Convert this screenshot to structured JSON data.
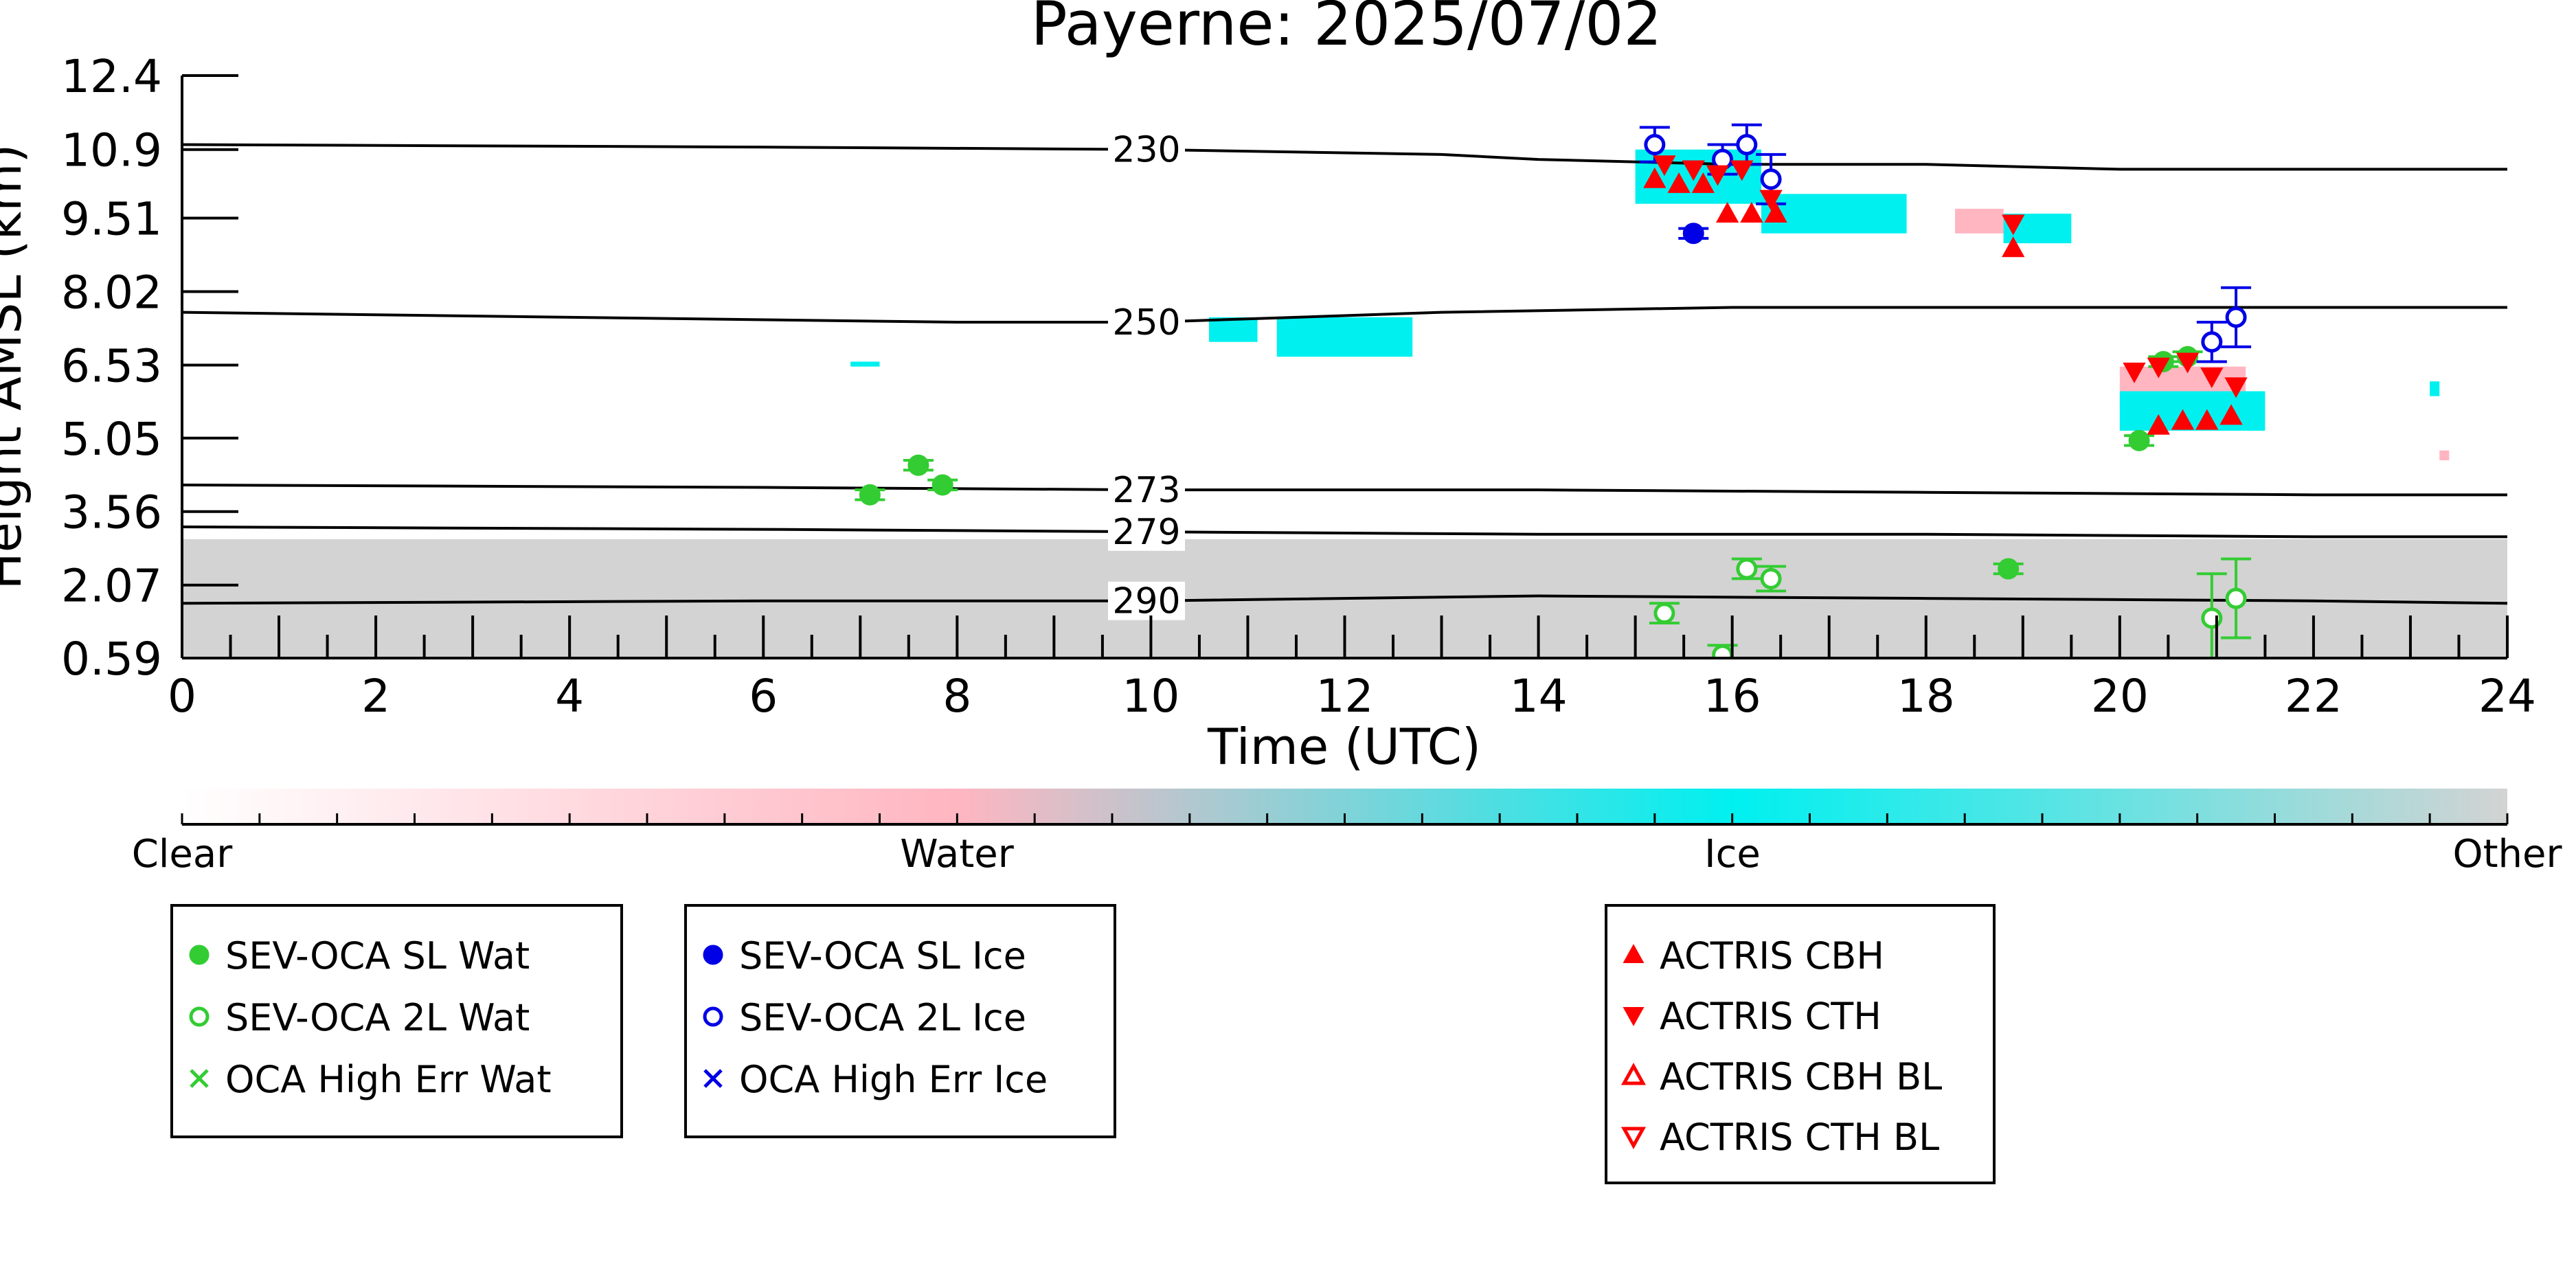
{
  "chart_data": {
    "type": "scatter",
    "title": "Payerne: 2025/07/02",
    "xlabel": "Time (UTC)",
    "ylabel": "Height AMSL (km)",
    "xlim": [
      0,
      24
    ],
    "ylim": [
      0.59,
      12.4
    ],
    "x_ticks": [
      0,
      2,
      4,
      6,
      8,
      10,
      12,
      14,
      16,
      18,
      20,
      22,
      24
    ],
    "y_ticks": [
      "12.4",
      "10.9",
      "9.51",
      "8.02",
      "6.53",
      "5.05",
      "3.56",
      "2.07",
      "0.59"
    ],
    "grid": false,
    "colors": {
      "water": "#33cc33",
      "ice": "#0000e6",
      "actris": "#ff0000",
      "cloud_ice": "#00f0f0",
      "cloud_water": "#ffb6c1",
      "cloud_other": "#d3d3d3"
    },
    "isotherms": [
      {
        "label": "230",
        "label_x": 9.6,
        "points": [
          [
            0,
            11.0
          ],
          [
            6,
            10.95
          ],
          [
            10,
            10.9
          ],
          [
            13,
            10.8
          ],
          [
            14,
            10.7
          ],
          [
            16,
            10.6
          ],
          [
            18,
            10.6
          ],
          [
            20,
            10.5
          ],
          [
            24,
            10.5
          ]
        ]
      },
      {
        "label": "250",
        "label_x": 9.6,
        "points": [
          [
            0,
            7.6
          ],
          [
            4,
            7.5
          ],
          [
            8,
            7.4
          ],
          [
            10,
            7.4
          ],
          [
            13,
            7.6
          ],
          [
            16,
            7.7
          ],
          [
            20,
            7.7
          ],
          [
            24,
            7.7
          ]
        ]
      },
      {
        "label": "273",
        "label_x": 9.6,
        "points": [
          [
            0,
            4.1
          ],
          [
            6,
            4.05
          ],
          [
            10,
            4.0
          ],
          [
            14,
            4.0
          ],
          [
            18,
            3.95
          ],
          [
            22,
            3.9
          ],
          [
            24,
            3.9
          ]
        ]
      },
      {
        "label": "279",
        "label_x": 9.6,
        "points": [
          [
            0,
            3.25
          ],
          [
            6,
            3.2
          ],
          [
            10,
            3.15
          ],
          [
            14,
            3.1
          ],
          [
            18,
            3.1
          ],
          [
            22,
            3.05
          ],
          [
            24,
            3.05
          ]
        ]
      },
      {
        "label": "290",
        "label_x": 9.6,
        "points": [
          [
            0,
            1.7
          ],
          [
            6,
            1.75
          ],
          [
            10,
            1.75
          ],
          [
            14,
            1.85
          ],
          [
            18,
            1.8
          ],
          [
            22,
            1.75
          ],
          [
            24,
            1.7
          ]
        ]
      }
    ],
    "cloud_layers": [
      {
        "class": "Other",
        "x0": 0,
        "x1": 24,
        "y0": 0.59,
        "y1": 3.0
      },
      {
        "class": "Ice",
        "x0": 6.9,
        "x1": 7.2,
        "y0": 6.5,
        "y1": 6.6
      },
      {
        "class": "Ice",
        "x0": 10.6,
        "x1": 11.1,
        "y0": 7.0,
        "y1": 7.5
      },
      {
        "class": "Ice",
        "x0": 11.3,
        "x1": 12.7,
        "y0": 6.7,
        "y1": 7.5
      },
      {
        "class": "Ice",
        "x0": 15.0,
        "x1": 16.3,
        "y0": 9.8,
        "y1": 10.9
      },
      {
        "class": "Ice",
        "x0": 16.3,
        "x1": 17.8,
        "y0": 9.2,
        "y1": 10.0
      },
      {
        "class": "Water",
        "x0": 18.3,
        "x1": 18.8,
        "y0": 9.2,
        "y1": 9.7
      },
      {
        "class": "Ice",
        "x0": 18.8,
        "x1": 19.5,
        "y0": 9.0,
        "y1": 9.6
      },
      {
        "class": "Water",
        "x0": 20.0,
        "x1": 21.3,
        "y0": 5.7,
        "y1": 6.5
      },
      {
        "class": "Ice",
        "x0": 20.0,
        "x1": 21.5,
        "y0": 5.2,
        "y1": 6.0
      },
      {
        "class": "Ice",
        "x0": 23.2,
        "x1": 23.3,
        "y0": 5.9,
        "y1": 6.2
      },
      {
        "class": "Water",
        "x0": 23.3,
        "x1": 23.4,
        "y0": 4.6,
        "y1": 4.8
      }
    ],
    "series": [
      {
        "name": "SEV-OCA SL Wat",
        "marker": "filled-circle",
        "color": "#33cc33",
        "points": [
          {
            "x": 7.1,
            "y": 3.9,
            "err": 0.1
          },
          {
            "x": 7.6,
            "y": 4.5,
            "err": 0.1
          },
          {
            "x": 7.85,
            "y": 4.1,
            "err": 0.1
          },
          {
            "x": 18.85,
            "y": 2.4,
            "err": 0.1
          },
          {
            "x": 20.2,
            "y": 5.0,
            "err": 0.1
          },
          {
            "x": 20.45,
            "y": 6.6,
            "err": 0.1
          },
          {
            "x": 20.7,
            "y": 6.7,
            "err": 0.1
          }
        ]
      },
      {
        "name": "SEV-OCA 2L Wat",
        "marker": "open-circle",
        "color": "#33cc33",
        "points": [
          {
            "x": 15.3,
            "y": 1.5,
            "err": 0.2
          },
          {
            "x": 15.9,
            "y": 0.65,
            "err": 0.2
          },
          {
            "x": 16.15,
            "y": 2.4,
            "err": 0.2
          },
          {
            "x": 16.4,
            "y": 2.2,
            "err": 0.25
          },
          {
            "x": 20.95,
            "y": 1.4,
            "err": 0.9
          },
          {
            "x": 21.2,
            "y": 1.8,
            "err": 0.8
          }
        ]
      },
      {
        "name": "OCA High Err Wat",
        "marker": "x",
        "color": "#33cc33",
        "points": []
      },
      {
        "name": "SEV-OCA SL Ice",
        "marker": "filled-circle",
        "color": "#0000e6",
        "points": [
          {
            "x": 15.6,
            "y": 9.2,
            "err": 0.1
          }
        ]
      },
      {
        "name": "SEV-OCA 2L Ice",
        "marker": "open-circle",
        "color": "#0000e6",
        "points": [
          {
            "x": 15.2,
            "y": 11.0,
            "err": 0.35
          },
          {
            "x": 15.9,
            "y": 10.7,
            "err": 0.3
          },
          {
            "x": 16.15,
            "y": 11.0,
            "err": 0.4
          },
          {
            "x": 16.4,
            "y": 10.3,
            "err": 0.5
          },
          {
            "x": 20.95,
            "y": 7.0,
            "err": 0.4
          },
          {
            "x": 21.2,
            "y": 7.5,
            "err": 0.6
          }
        ]
      },
      {
        "name": "OCA High Err Ice",
        "marker": "x",
        "color": "#0000e6",
        "points": []
      },
      {
        "name": "ACTRIS CBH",
        "marker": "filled-triangle-up",
        "color": "#ff0000",
        "points": [
          {
            "x": 15.2,
            "y": 10.3
          },
          {
            "x": 15.45,
            "y": 10.2
          },
          {
            "x": 15.7,
            "y": 10.2
          },
          {
            "x": 15.95,
            "y": 9.6
          },
          {
            "x": 16.2,
            "y": 9.6
          },
          {
            "x": 16.45,
            "y": 9.6
          },
          {
            "x": 18.9,
            "y": 8.9
          },
          {
            "x": 20.4,
            "y": 5.3
          },
          {
            "x": 20.65,
            "y": 5.4
          },
          {
            "x": 20.9,
            "y": 5.4
          },
          {
            "x": 21.15,
            "y": 5.5
          }
        ]
      },
      {
        "name": "ACTRIS CTH",
        "marker": "filled-triangle-down",
        "color": "#ff0000",
        "points": [
          {
            "x": 15.3,
            "y": 10.6
          },
          {
            "x": 15.6,
            "y": 10.5
          },
          {
            "x": 15.85,
            "y": 10.4
          },
          {
            "x": 16.1,
            "y": 10.5
          },
          {
            "x": 16.4,
            "y": 9.9
          },
          {
            "x": 18.9,
            "y": 9.4
          },
          {
            "x": 20.15,
            "y": 6.4
          },
          {
            "x": 20.4,
            "y": 6.5
          },
          {
            "x": 20.7,
            "y": 6.6
          },
          {
            "x": 20.95,
            "y": 6.3
          },
          {
            "x": 21.2,
            "y": 6.1
          }
        ]
      },
      {
        "name": "ACTRIS CBH BL",
        "marker": "open-triangle-up",
        "color": "#ff0000",
        "points": []
      },
      {
        "name": "ACTRIS CTH BL",
        "marker": "open-triangle-down",
        "color": "#ff0000",
        "points": []
      }
    ],
    "colorbar": {
      "labels": [
        "Clear",
        "Water",
        "Ice",
        "Other"
      ],
      "stops": [
        "#ffffff",
        "#ffb6c1",
        "#00f0f0",
        "#d3d3d3"
      ]
    },
    "legend_groups": [
      [
        "SEV-OCA SL Wat",
        "SEV-OCA 2L Wat",
        "OCA High Err Wat"
      ],
      [
        "SEV-OCA SL Ice",
        "SEV-OCA 2L Ice",
        "OCA High Err Ice"
      ],
      [
        "ACTRIS CBH",
        "ACTRIS CTH",
        "ACTRIS CBH BL",
        "ACTRIS CTH BL"
      ]
    ],
    "legend_placement": "below"
  }
}
